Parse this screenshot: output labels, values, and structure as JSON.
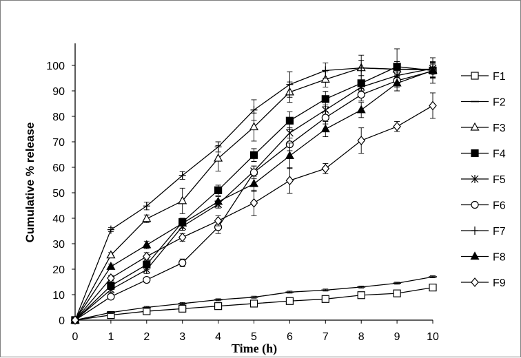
{
  "chart_data": {
    "type": "line",
    "title": "",
    "xlabel": "Time (h)",
    "ylabel": "Cumulative % release",
    "x": [
      0,
      1,
      2,
      3,
      4,
      5,
      6,
      7,
      8,
      9,
      10
    ],
    "xlim": [
      0,
      10
    ],
    "ylim": [
      0,
      100
    ],
    "x_ticks": [
      "0",
      "1",
      "2",
      "3",
      "4",
      "5",
      "6",
      "7",
      "8",
      "9",
      "10"
    ],
    "y_ticks": [
      "0",
      "10",
      "20",
      "30",
      "40",
      "50",
      "60",
      "70",
      "80",
      "90",
      "100"
    ],
    "grid": false,
    "legend_position": "right",
    "series": [
      {
        "name": "F1",
        "marker": "square-open",
        "values": [
          0,
          2.0,
          3.5,
          4.5,
          5.5,
          6.5,
          7.5,
          8.3,
          9.8,
          10.5,
          12.8
        ],
        "errors": [
          0,
          0.5,
          0.5,
          0.5,
          0.5,
          0.5,
          0.5,
          0.5,
          0.5,
          0.8,
          0.8
        ]
      },
      {
        "name": "F2",
        "marker": "dash",
        "values": [
          0,
          3.0,
          5.0,
          6.5,
          8.0,
          9.0,
          11.0,
          11.8,
          13.0,
          14.5,
          17.0
        ],
        "errors": [
          0,
          0.4,
          0.4,
          0.4,
          0.4,
          0.4,
          0.4,
          0.4,
          0.4,
          0.4,
          0.4
        ]
      },
      {
        "name": "F3",
        "marker": "triangle-open",
        "values": [
          0,
          25.5,
          39.8,
          46.8,
          63.5,
          75.8,
          89.5,
          94.5,
          99.0,
          98.5,
          98.2
        ],
        "errors": [
          0,
          1.0,
          1.5,
          5.0,
          5.0,
          5.5,
          4.0,
          3.0,
          5.0,
          3.0,
          3.0
        ]
      },
      {
        "name": "F4",
        "marker": "square-filled",
        "values": [
          0,
          13.5,
          21.8,
          38.5,
          51.0,
          64.8,
          78.3,
          86.8,
          93.0,
          99.5,
          98.0
        ],
        "errors": [
          0,
          1.5,
          2.0,
          1.5,
          2.0,
          2.5,
          3.5,
          3.0,
          3.0,
          7.0,
          5.0
        ]
      },
      {
        "name": "F5",
        "marker": "asterisk",
        "values": [
          0,
          12.0,
          19.8,
          36.8,
          45.5,
          58.5,
          73.5,
          82.5,
          91.5,
          96.0,
          98.8
        ],
        "errors": [
          0,
          1.0,
          1.5,
          1.5,
          1.5,
          2.0,
          2.0,
          2.0,
          2.0,
          2.0,
          2.0
        ]
      },
      {
        "name": "F6",
        "marker": "circle-open",
        "values": [
          0,
          9.2,
          15.8,
          22.5,
          36.5,
          58.0,
          69.0,
          79.5,
          88.5,
          94.0,
          97.8
        ],
        "errors": [
          0,
          1.0,
          1.0,
          1.5,
          2.5,
          2.5,
          2.5,
          2.5,
          2.5,
          2.5,
          2.5
        ]
      },
      {
        "name": "F7",
        "marker": "plus",
        "values": [
          0,
          35.5,
          44.8,
          56.8,
          68.0,
          82.5,
          92.5,
          98.0,
          99.0,
          98.5,
          98.5
        ],
        "errors": [
          0,
          0.8,
          1.5,
          1.5,
          2.0,
          4.0,
          5.0,
          3.0,
          3.0,
          3.0,
          3.0
        ]
      },
      {
        "name": "F8",
        "marker": "triangle-filled",
        "values": [
          0,
          21.0,
          29.5,
          38.0,
          46.5,
          53.5,
          64.5,
          75.0,
          82.5,
          93.0,
          98.0
        ],
        "errors": [
          0,
          1.0,
          1.5,
          2.0,
          2.0,
          3.0,
          5.0,
          3.0,
          3.0,
          3.0,
          3.0
        ]
      },
      {
        "name": "F9",
        "marker": "diamond-open",
        "values": [
          0,
          16.5,
          25.0,
          32.5,
          39.0,
          46.0,
          54.8,
          59.5,
          70.5,
          76.0,
          84.2
        ],
        "errors": [
          0,
          1.0,
          1.5,
          1.5,
          2.0,
          5.0,
          5.0,
          2.0,
          5.0,
          2.0,
          5.0
        ]
      }
    ]
  }
}
